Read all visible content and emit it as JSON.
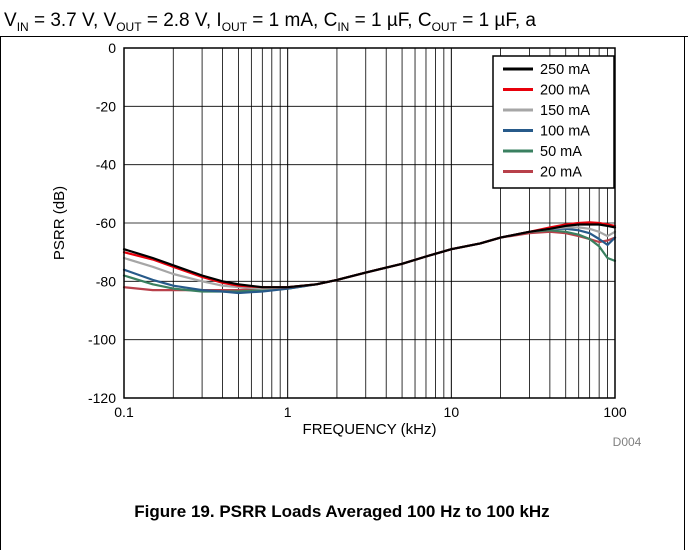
{
  "conditions": {
    "vin_sym": "V",
    "vin_sub": "IN",
    "vin_val": " = 3.7 V, ",
    "vout_sym": "V",
    "vout_sub": "OUT",
    "vout_val": " = 2.8 V, ",
    "iout_sym": "I",
    "iout_sub": "OUT",
    "iout_val": " = 1 mA, ",
    "cin_sym": "C",
    "cin_sub": "IN",
    "cin_val": " = 1 µF, ",
    "cout_sym": "C",
    "cout_sub": "OUT",
    "cout_val": " = 1 µF, a"
  },
  "chart_data": {
    "type": "line",
    "title": "",
    "xlabel": "FREQUENCY (kHz)",
    "ylabel": "PSRR (dB)",
    "xscale": "log",
    "xlim": [
      0.1,
      100
    ],
    "ylim": [
      -120,
      0
    ],
    "grid": true,
    "legend_position": "top-right",
    "x_ticks": [
      {
        "value": 0.1,
        "label": "0.1"
      },
      {
        "value": 1,
        "label": "1"
      },
      {
        "value": 10,
        "label": "10"
      },
      {
        "value": 100,
        "label": "100"
      }
    ],
    "y_ticks": [
      {
        "value": 0,
        "label": "0"
      },
      {
        "value": -20,
        "label": "-20"
      },
      {
        "value": -40,
        "label": "-40"
      },
      {
        "value": -60,
        "label": "-60"
      },
      {
        "value": -80,
        "label": "-80"
      },
      {
        "value": -100,
        "label": "-100"
      },
      {
        "value": -120,
        "label": "-120"
      }
    ],
    "annotation": "D004",
    "series": [
      {
        "name": "250 mA",
        "color": "#000000",
        "x": [
          0.1,
          0.15,
          0.2,
          0.3,
          0.4,
          0.5,
          0.7,
          1,
          1.5,
          2,
          3,
          5,
          7,
          10,
          15,
          20,
          30,
          40,
          50,
          60,
          70,
          80,
          90,
          100
        ],
        "y": [
          -69,
          -72,
          -74.5,
          -78,
          -80,
          -81,
          -82,
          -82,
          -81,
          -79.5,
          -77,
          -74,
          -71.5,
          -69,
          -67,
          -65,
          -63,
          -62,
          -61,
          -60.5,
          -60.5,
          -60.5,
          -61,
          -61.5
        ]
      },
      {
        "name": "200 mA",
        "color": "#e8000b",
        "x": [
          0.1,
          0.15,
          0.2,
          0.3,
          0.4,
          0.5,
          0.7,
          1,
          1.5,
          2,
          3,
          5,
          7,
          10,
          15,
          20,
          30,
          40,
          50,
          60,
          70,
          80,
          90,
          100
        ],
        "y": [
          -70,
          -72.5,
          -75,
          -78.5,
          -80.5,
          -81.5,
          -82,
          -82,
          -81,
          -79.5,
          -77,
          -74,
          -71.5,
          -69,
          -67,
          -65,
          -63,
          -61.5,
          -60.5,
          -60,
          -59.8,
          -60,
          -60.5,
          -61
        ]
      },
      {
        "name": "150 mA",
        "color": "#a6a6a6",
        "x": [
          0.1,
          0.15,
          0.2,
          0.3,
          0.4,
          0.5,
          0.7,
          1,
          1.5,
          2,
          3,
          5,
          7,
          10,
          15,
          20,
          30,
          40,
          50,
          60,
          70,
          80,
          90,
          100
        ],
        "y": [
          -72,
          -75,
          -77.5,
          -80,
          -81.5,
          -82,
          -82.5,
          -82,
          -81,
          -79.5,
          -77,
          -74,
          -71.5,
          -69,
          -67,
          -65,
          -63,
          -62,
          -61.5,
          -61.5,
          -62,
          -63,
          -64.5,
          -63
        ]
      },
      {
        "name": "100 mA",
        "color": "#275a8a",
        "x": [
          0.1,
          0.15,
          0.2,
          0.3,
          0.4,
          0.5,
          0.7,
          1,
          1.5,
          2,
          3,
          5,
          7,
          10,
          15,
          20,
          30,
          40,
          50,
          60,
          70,
          80,
          90,
          100
        ],
        "y": [
          -76,
          -79.5,
          -81.5,
          -83,
          -83.5,
          -84,
          -83.5,
          -82.5,
          -81,
          -79.5,
          -77,
          -74,
          -71.5,
          -69,
          -67,
          -65,
          -63,
          -62,
          -62,
          -62.5,
          -63.5,
          -65.5,
          -67.5,
          -65
        ]
      },
      {
        "name": "50 mA",
        "color": "#3a8060",
        "x": [
          0.1,
          0.15,
          0.2,
          0.3,
          0.4,
          0.5,
          0.7,
          1,
          1.5,
          2,
          3,
          5,
          7,
          10,
          15,
          20,
          30,
          40,
          50,
          60,
          70,
          80,
          90,
          100
        ],
        "y": [
          -78,
          -81,
          -82.5,
          -83.5,
          -83.5,
          -83.5,
          -83,
          -82.5,
          -81,
          -79.5,
          -77,
          -74,
          -71.5,
          -69,
          -67,
          -65,
          -63,
          -62.5,
          -63,
          -64,
          -65.5,
          -68,
          -72,
          -73
        ]
      },
      {
        "name": "20 mA",
        "color": "#b8404a",
        "x": [
          0.1,
          0.15,
          0.2,
          0.3,
          0.4,
          0.5,
          0.7,
          1,
          1.5,
          2,
          3,
          5,
          7,
          10,
          15,
          20,
          30,
          40,
          50,
          60,
          70,
          80,
          90,
          100
        ],
        "y": [
          -82,
          -83,
          -83,
          -83,
          -83,
          -83,
          -82.5,
          -82,
          -81,
          -79.5,
          -77,
          -74,
          -71.5,
          -69,
          -67,
          -65,
          -63.5,
          -63,
          -63.5,
          -64.5,
          -65.5,
          -66.5,
          -66,
          -65
        ]
      }
    ]
  },
  "caption": "Figure 19. PSRR Loads Averaged 100 Hz to 100 kHz"
}
